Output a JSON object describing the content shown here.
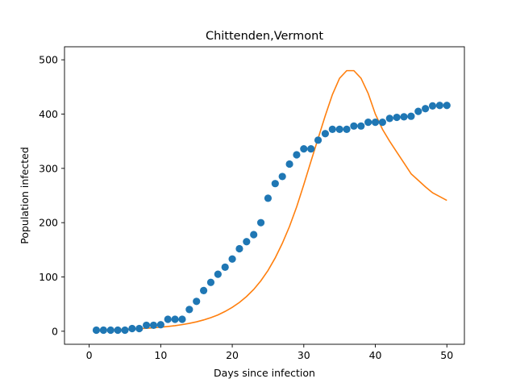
{
  "chart_data": {
    "type": "scatter",
    "title": "Chittenden,Vermont",
    "xlabel": "Days since infection",
    "ylabel": "Population infected",
    "xlim": [
      -3.45,
      52.45
    ],
    "ylim": [
      -24,
      524
    ],
    "xticks": [
      0,
      10,
      20,
      30,
      40,
      50
    ],
    "yticks": [
      0,
      100,
      200,
      300,
      400,
      500
    ],
    "grid": false,
    "series": [
      {
        "kind": "scatter",
        "color": "#1f77b4",
        "x": [
          1,
          2,
          3,
          4,
          5,
          6,
          7,
          8,
          9,
          10,
          11,
          12,
          13,
          14,
          15,
          16,
          17,
          18,
          19,
          20,
          21,
          22,
          23,
          24,
          25,
          26,
          27,
          28,
          29,
          30,
          31,
          32,
          33,
          34,
          35,
          36,
          37,
          38,
          39,
          40,
          41,
          42,
          43,
          44,
          45,
          46,
          47,
          48,
          49,
          50
        ],
        "y": [
          2,
          2,
          2,
          2,
          2,
          5,
          5,
          11,
          11,
          12,
          22,
          22,
          22,
          40,
          55,
          75,
          90,
          105,
          118,
          133,
          152,
          165,
          178,
          200,
          245,
          272,
          285,
          308,
          325,
          336,
          336,
          352,
          364,
          372,
          372,
          372,
          378,
          378,
          385,
          385,
          385,
          392,
          394,
          395,
          396,
          405,
          410,
          415,
          416,
          416
        ]
      },
      {
        "kind": "line",
        "color": "#ff7f0e",
        "x": [
          1,
          2,
          3,
          4,
          5,
          6,
          7,
          8,
          9,
          10,
          11,
          12,
          13,
          14,
          15,
          16,
          17,
          18,
          19,
          20,
          21,
          22,
          23,
          24,
          25,
          26,
          27,
          28,
          29,
          30,
          31,
          32,
          33,
          34,
          35,
          36,
          37,
          38,
          39,
          40,
          41,
          42,
          43,
          44,
          45,
          46,
          47,
          48,
          49,
          50
        ],
        "y": [
          2,
          2.4,
          2.8,
          3.2,
          3.7,
          4.2,
          4.8,
          5.5,
          6.4,
          7.5,
          8.8,
          10.3,
          12.2,
          14.5,
          17.3,
          20.8,
          25,
          30,
          36.5,
          44,
          53,
          64,
          77,
          93,
          112,
          135,
          162,
          193,
          229,
          270,
          313,
          355,
          397,
          436,
          466,
          480,
          480,
          466,
          438,
          400,
          372,
          350,
          330,
          310,
          290,
          278,
          266,
          255,
          248,
          241
        ]
      }
    ]
  }
}
